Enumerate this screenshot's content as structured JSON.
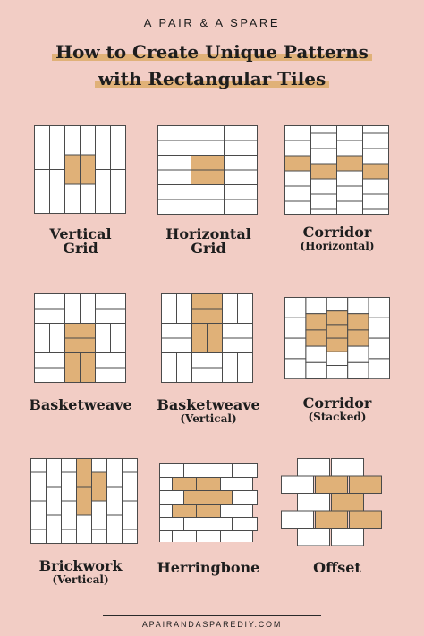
{
  "header": {
    "brand": "A PAIR & A SPARE",
    "title_line1": "How to Create Unique Patterns",
    "title_line2": "with Rectangular Tiles"
  },
  "colors": {
    "background": "#f2cdc5",
    "tile": "#ffffff",
    "accent_tile": "#e0b178",
    "grout": "#4a4a4a",
    "text": "#1e1e1e"
  },
  "patterns": [
    {
      "id": "vertical-grid",
      "title": "Vertical\nGrid",
      "subtitle": ""
    },
    {
      "id": "horizontal-grid",
      "title": "Horizontal\nGrid",
      "subtitle": ""
    },
    {
      "id": "corridor-horizontal",
      "title": "Corridor",
      "subtitle": "(Horizontal)"
    },
    {
      "id": "basketweave",
      "title": "Basketweave",
      "subtitle": ""
    },
    {
      "id": "basketweave-vertical",
      "title": "Basketweave",
      "subtitle": "(Vertical)"
    },
    {
      "id": "corridor-stacked",
      "title": "Corridor",
      "subtitle": "(Stacked)"
    },
    {
      "id": "brickwork-vertical",
      "title": "Brickwork",
      "subtitle": "(Vertical)"
    },
    {
      "id": "herringbone",
      "title": "Herringbone",
      "subtitle": ""
    },
    {
      "id": "offset",
      "title": "Offset",
      "subtitle": ""
    }
  ],
  "footer": {
    "url": "APAIRANDASPAREDIY.COM"
  }
}
